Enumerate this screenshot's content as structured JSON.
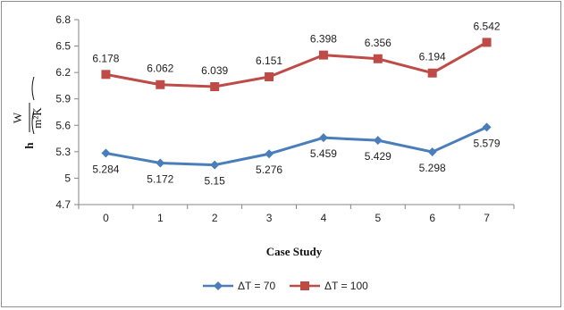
{
  "chart_data": {
    "type": "line",
    "categories": [
      "0",
      "1",
      "2",
      "3",
      "4",
      "5",
      "6",
      "7"
    ],
    "series": [
      {
        "name": "ΔT = 70",
        "color": "#4a7ebb",
        "marker": "diamond",
        "values": [
          5.284,
          5.172,
          5.15,
          5.276,
          5.459,
          5.429,
          5.298,
          5.579
        ],
        "labels": [
          "5.284",
          "5.172",
          "5.15",
          "5.276",
          "5.459",
          "5.429",
          "5.298",
          "5.579"
        ]
      },
      {
        "name": "ΔT = 100",
        "color": "#be4b48",
        "marker": "square",
        "values": [
          6.178,
          6.062,
          6.039,
          6.151,
          6.398,
          6.356,
          6.194,
          6.542
        ],
        "labels": [
          "6.178",
          "6.062",
          "6.039",
          "6.151",
          "6.398",
          "6.356",
          "6.194",
          "6.542"
        ]
      }
    ],
    "xlabel": "Case Study",
    "ylabel": {
      "main": "h",
      "numerator": "W",
      "denominator": "m²K"
    },
    "ylim": [
      4.7,
      6.8
    ],
    "yticks": [
      "4.7",
      "5",
      "5.3",
      "5.6",
      "5.9",
      "6.2",
      "6.5",
      "6.8"
    ],
    "grid": false,
    "legend_position": "bottom"
  }
}
